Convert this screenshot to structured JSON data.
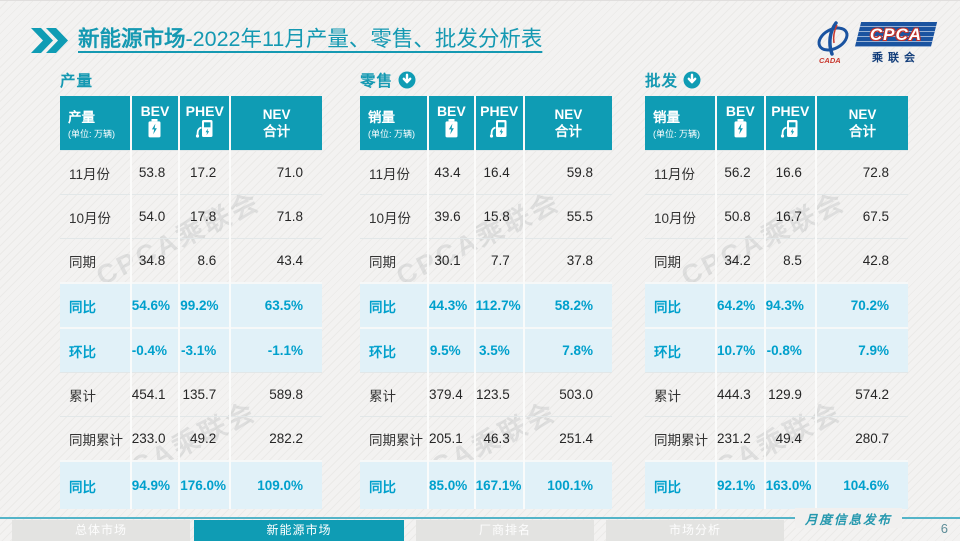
{
  "title": {
    "highlight": "新能源市场",
    "rest": "-2022年11月产量、零售、批发分析表"
  },
  "logo": {
    "acronym": "CPCA",
    "org": "乘联会",
    "mark_text": "CADA"
  },
  "colors": {
    "accent": "#0f9cb4",
    "percent_text": "#00a0cc",
    "highlight_row_bg": "#e1f1f8"
  },
  "watermark": "CPCA乘联会",
  "tables": [
    {
      "section": "产量",
      "first_col": {
        "title": "产量",
        "unit": "(单位: 万辆)"
      },
      "columns": {
        "bev": "BEV",
        "phev": "PHEV",
        "nev_line1": "NEV",
        "nev_line2": "合计"
      },
      "rows": [
        {
          "label": "11月份",
          "bev": "53.8",
          "phev": "17.2",
          "nev": "71.0",
          "highlight": false
        },
        {
          "label": "10月份",
          "bev": "54.0",
          "phev": "17.8",
          "nev": "71.8",
          "highlight": false
        },
        {
          "label": "同期",
          "bev": "34.8",
          "phev": "8.6",
          "nev": "43.4",
          "highlight": false
        },
        {
          "label": "同比",
          "bev": "54.6%",
          "phev": "99.2%",
          "nev": "63.5%",
          "highlight": true
        },
        {
          "label": "环比",
          "bev": "-0.4%",
          "phev": "-3.1%",
          "nev": "-1.1%",
          "highlight": true
        },
        {
          "label": "累计",
          "bev": "454.1",
          "phev": "135.7",
          "nev": "589.8",
          "highlight": false
        },
        {
          "label": "同期累计",
          "bev": "233.0",
          "phev": "49.2",
          "nev": "282.2",
          "highlight": false
        },
        {
          "label": "同比",
          "bev": "94.9%",
          "phev": "176.0%",
          "nev": "109.0%",
          "highlight": true
        }
      ]
    },
    {
      "section": "零售",
      "first_col": {
        "title": "销量",
        "unit": "(单位: 万辆)"
      },
      "columns": {
        "bev": "BEV",
        "phev": "PHEV",
        "nev_line1": "NEV",
        "nev_line2": "合计"
      },
      "rows": [
        {
          "label": "11月份",
          "bev": "43.4",
          "phev": "16.4",
          "nev": "59.8",
          "highlight": false
        },
        {
          "label": "10月份",
          "bev": "39.6",
          "phev": "15.8",
          "nev": "55.5",
          "highlight": false
        },
        {
          "label": "同期",
          "bev": "30.1",
          "phev": "7.7",
          "nev": "37.8",
          "highlight": false
        },
        {
          "label": "同比",
          "bev": "44.3%",
          "phev": "112.7%",
          "nev": "58.2%",
          "highlight": true
        },
        {
          "label": "环比",
          "bev": "9.5%",
          "phev": "3.5%",
          "nev": "7.8%",
          "highlight": true
        },
        {
          "label": "累计",
          "bev": "379.4",
          "phev": "123.5",
          "nev": "503.0",
          "highlight": false
        },
        {
          "label": "同期累计",
          "bev": "205.1",
          "phev": "46.3",
          "nev": "251.4",
          "highlight": false
        },
        {
          "label": "同比",
          "bev": "85.0%",
          "phev": "167.1%",
          "nev": "100.1%",
          "highlight": true
        }
      ]
    },
    {
      "section": "批发",
      "first_col": {
        "title": "销量",
        "unit": "(单位: 万辆)"
      },
      "columns": {
        "bev": "BEV",
        "phev": "PHEV",
        "nev_line1": "NEV",
        "nev_line2": "合计"
      },
      "rows": [
        {
          "label": "11月份",
          "bev": "56.2",
          "phev": "16.6",
          "nev": "72.8",
          "highlight": false
        },
        {
          "label": "10月份",
          "bev": "50.8",
          "phev": "16.7",
          "nev": "67.5",
          "highlight": false
        },
        {
          "label": "同期",
          "bev": "34.2",
          "phev": "8.5",
          "nev": "42.8",
          "highlight": false
        },
        {
          "label": "同比",
          "bev": "64.2%",
          "phev": "94.3%",
          "nev": "70.2%",
          "highlight": true
        },
        {
          "label": "环比",
          "bev": "10.7%",
          "phev": "-0.8%",
          "nev": "7.9%",
          "highlight": true
        },
        {
          "label": "累计",
          "bev": "444.3",
          "phev": "129.9",
          "nev": "574.2",
          "highlight": false
        },
        {
          "label": "同期累计",
          "bev": "231.2",
          "phev": "49.4",
          "nev": "280.7",
          "highlight": false
        },
        {
          "label": "同比",
          "bev": "92.1%",
          "phev": "163.0%",
          "nev": "104.6%",
          "highlight": true
        }
      ]
    }
  ],
  "footer": {
    "tabs": [
      {
        "label": "总体市场",
        "active": false
      },
      {
        "label": "新能源市场",
        "active": true
      },
      {
        "label": "厂商排名",
        "active": false
      },
      {
        "label": "市场分析",
        "active": false
      }
    ],
    "caption": "月度信息发布",
    "page_number": "6"
  }
}
